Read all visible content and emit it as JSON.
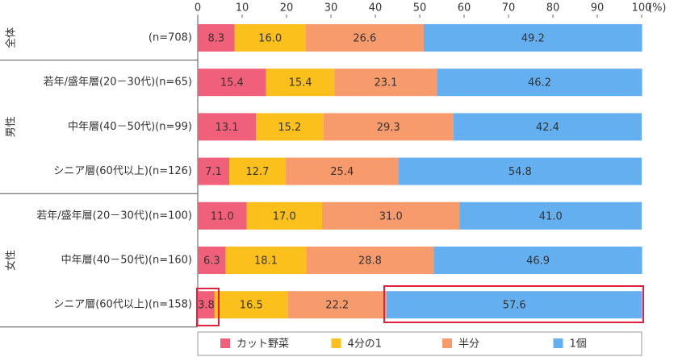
{
  "chart_data": {
    "type": "stacked-bar-horizontal",
    "x_label": "(%)",
    "xlim": [
      0,
      100
    ],
    "xticks": [
      0,
      10,
      20,
      30,
      40,
      50,
      60,
      70,
      80,
      90,
      100
    ],
    "groups": [
      {
        "label": "全体",
        "categories": [
          "(n=708)"
        ]
      },
      {
        "label": "男性",
        "categories": [
          "若年/盛年層(20－30代)(n=65)",
          "中年層(40－50代)(n=99)",
          "シニア層(60代以上)(n=126)"
        ]
      },
      {
        "label": "女性",
        "categories": [
          "若年/盛年層(20－30代)(n=100)",
          "中年層(40－50代)(n=160)",
          "シニア層(60代以上)(n=158)"
        ]
      }
    ],
    "series": [
      {
        "name": "カット野菜",
        "color": "#f0607a",
        "values": [
          8.3,
          15.4,
          13.1,
          7.1,
          11.0,
          6.3,
          3.8
        ],
        "value_labels": [
          "8.3",
          "15.4",
          "13.1",
          "7.1",
          "11.0",
          "6.3",
          "3.8"
        ]
      },
      {
        "name": "4分の1",
        "color": "#fbc01c",
        "values": [
          16.0,
          15.4,
          15.2,
          12.7,
          17.0,
          18.1,
          16.5
        ],
        "value_labels": [
          "16.0",
          "15.4",
          "15.2",
          "12.7",
          "17.0",
          "18.1",
          "16.5"
        ]
      },
      {
        "name": "半分",
        "color": "#f79a6c",
        "values": [
          26.6,
          23.1,
          29.3,
          25.4,
          31.0,
          28.8,
          22.2
        ],
        "value_labels": [
          "26.6",
          "23.1",
          "29.3",
          "25.4",
          "31.0",
          "28.8",
          "22.2"
        ]
      },
      {
        "name": "1個",
        "color": "#63aff0",
        "values": [
          49.2,
          46.2,
          42.4,
          54.8,
          41.0,
          46.9,
          57.6
        ],
        "value_labels": [
          "49.2",
          "46.2",
          "42.4",
          "54.8",
          "41.0",
          "46.9",
          "57.6"
        ]
      }
    ]
  }
}
